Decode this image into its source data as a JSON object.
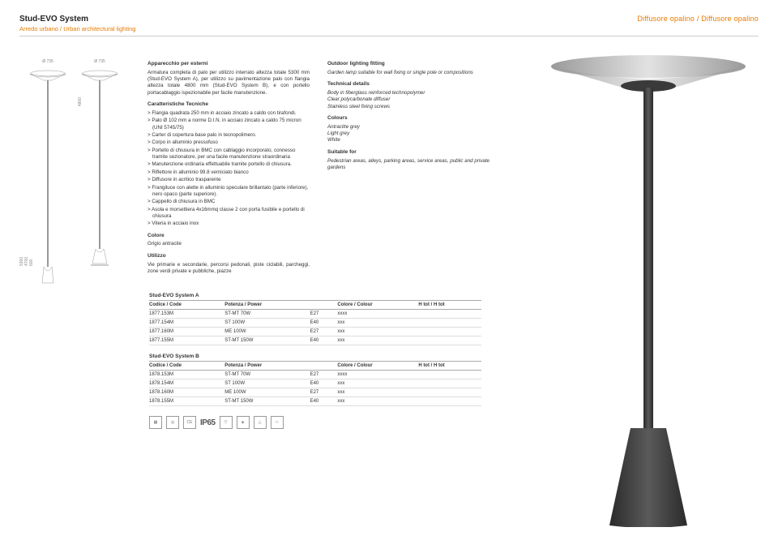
{
  "header": {
    "title": "Stud-EVO System",
    "subtitle": "Arredo urbano / Urban architectural lighting",
    "right": "Diffusore opalino / Diffusore opalino"
  },
  "diagram": {
    "dia1": "Ø 735",
    "dia2": "Ø 735",
    "h_4700": "4700",
    "h_5300": "5300",
    "h_600": "600",
    "h_4800": "4800"
  },
  "it": {
    "h1": "Apparecchio per esterni",
    "p1": "Armatura completa di palo per utilizzo interrato altezza totale 5300 mm (Stud-EVO System A), per utilizzo su pavimentazione palo con flangia altezza totale 4800 mm (Stud-EVO System B), e con portello portacablaggio ispezionabile per facile manutenzione.",
    "h2": "Caratteristiche Tecniche",
    "b1": "> Flangia quadrata 250 mm in acciaio zincato a caldo con tirafondi.",
    "b2": "> Palo Ø 102 mm a norme D.I.N. in acciaio zincato a caldo 75 micron (UNI 5745/75)",
    "b3": "> Carter di copertura base palo in tecnopolimero.",
    "b4": "> Corpo in alluminio pressofuso",
    "b5": "> Portello di chiusura in BMC con cablaggio incorporato, connesso tramite sezionatore, per una facile manutenzione straordinaria",
    "b6": "> Manutenzione ordinaria effettuabile tramite portello di chiusura.",
    "b7": "> Riflettore in alluminio 99.8 verniciato bianco",
    "b8": "> Diffusore in acrilico trasparente",
    "b9": "> Frangiluce con alette in alluminio speculare brillantato (parte inferiore), nero opaco (parte superiore).",
    "b10": "> Cappello di chiusura in BMC",
    "b11": "> Asola e morsettiera 4x16mmq classe 2 con porta fusibile e portello di chiusura",
    "b12": "> Viteria in acciaio inox",
    "h3": "Colore",
    "p3": "Grigio antracite",
    "h4": "Utilizzo",
    "p4": "Vie primarie e secondarie, percorsi pedonali, piste ciclabili, parcheggi, zone verdi private e pubbliche, piazze"
  },
  "en": {
    "h1": "Outdoor lighting fitting",
    "p1": "Garden lamp suitable for wall fixing or single pole or compositions",
    "h2": "Technical details",
    "p2a": "Body in fiberglass reinforced technopolymer",
    "p2b": "Clear polycarbonate diffuser",
    "p2c": "Stainless steel fixing screws",
    "h3": "Colours",
    "p3a": "Antracitte grey",
    "p3b": "Light grey",
    "p3c": "White",
    "h4": "Suitable for",
    "p4": "Pedestrian areas, alleys, parking areas, service areas, public and private gardens"
  },
  "tableA": {
    "title": "Stud-EVO System A",
    "headers": [
      "Codice / Code",
      "Potenza / Power",
      "",
      "Colore / Colour",
      "H tot / H tot"
    ],
    "rows": [
      [
        "1877.153M",
        "ST-MT 70W",
        "E27",
        "xxxx",
        ""
      ],
      [
        "1877.154M",
        "ST 100W",
        "E40",
        "xxx",
        ""
      ],
      [
        "1877.160M",
        "ME 100W",
        "E27",
        "xxx",
        ""
      ],
      [
        "1877.155M",
        "ST-MT 150W",
        "E40",
        "xxx",
        ""
      ]
    ]
  },
  "tableB": {
    "title": "Stud-EVO System B",
    "headers": [
      "Codice / Code",
      "Potenza / Power",
      "",
      "Colore / Colour",
      "H tot / H tot"
    ],
    "rows": [
      [
        "1878.153M",
        "ST-MT 70W",
        "E27",
        "xxxx",
        ""
      ],
      [
        "1878.154M",
        "ST 100W",
        "E40",
        "xxx",
        ""
      ],
      [
        "1878.160M",
        "ME 100W",
        "E27",
        "xxx",
        ""
      ],
      [
        "1878.155M",
        "ST-MT 150W",
        "E40",
        "xxx",
        ""
      ]
    ]
  },
  "iconstrip": {
    "ip": "IP65"
  },
  "colors": {
    "accent": "#e87a00",
    "text": "#333333",
    "line": "#cccccc",
    "lamp_body": "#4a4a4a",
    "lamp_light": "#bdbdbd"
  }
}
